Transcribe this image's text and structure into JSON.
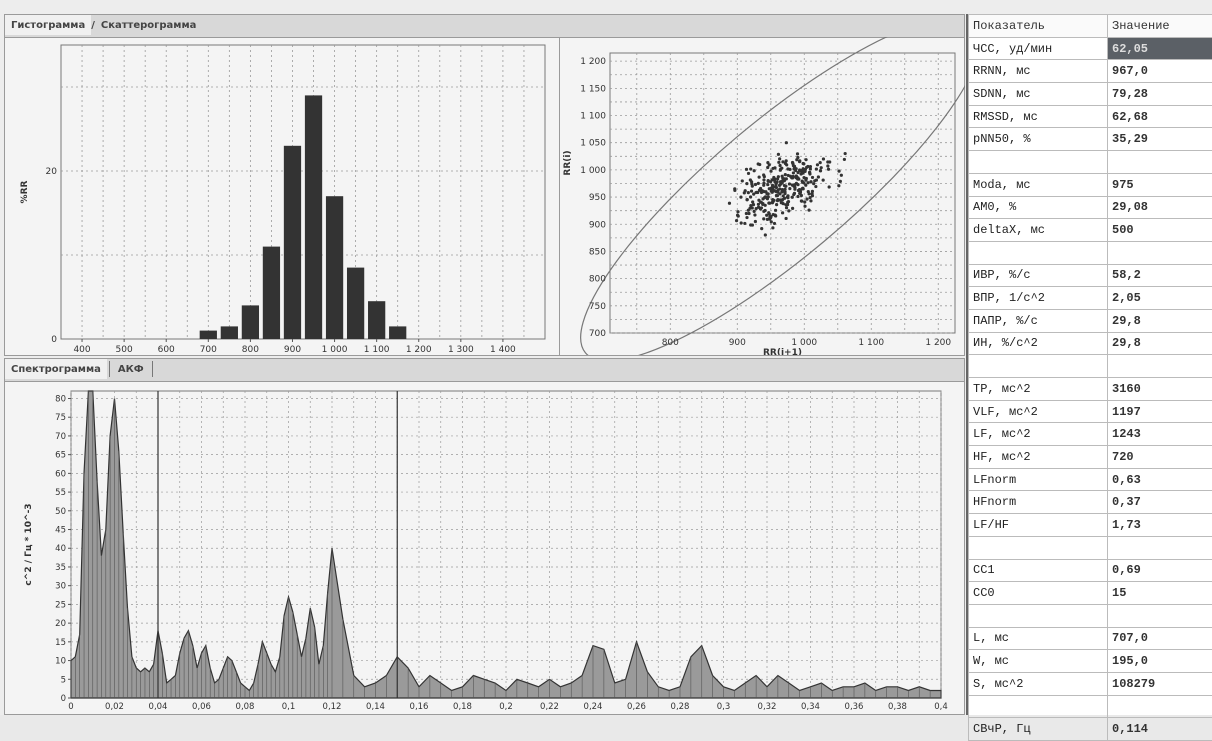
{
  "top_tabs": {
    "histogram": "Гистограмма",
    "separator": "/",
    "scatter": "Скаттерограмма"
  },
  "bottom_tabs": {
    "spectrogram": "Спектрограмма",
    "acf": "АКФ"
  },
  "histogram": {
    "ylabel": "%RR",
    "x_ticks": [
      "400",
      "500",
      "600",
      "700",
      "800",
      "900",
      "1 000",
      "1 100",
      "1 200",
      "1 300",
      "1 400"
    ],
    "y_ticks": [
      "0",
      "20"
    ]
  },
  "scatter": {
    "xlabel": "RR(i+1)",
    "ylabel": "RR(i)",
    "x_ticks": [
      "800",
      "900",
      "1 000",
      "1 100",
      "1 200"
    ],
    "y_ticks": [
      "700",
      "750",
      "800",
      "850",
      "900",
      "950",
      "1 000",
      "1 050",
      "1 100",
      "1 150",
      "1 200"
    ]
  },
  "spectrum": {
    "ylabel": "с^2 / Гц * 10^-3",
    "x_ticks": [
      "0",
      "0,02",
      "0,04",
      "0,06",
      "0,08",
      "0,1",
      "0,12",
      "0,14",
      "0,16",
      "0,18",
      "0,2",
      "0,22",
      "0,24",
      "0,26",
      "0,28",
      "0,3",
      "0,32",
      "0,34",
      "0,36",
      "0,38",
      "0,4"
    ],
    "y_ticks": [
      "0",
      "5",
      "10",
      "15",
      "20",
      "25",
      "30",
      "35",
      "40",
      "45",
      "50",
      "55",
      "60",
      "65",
      "70",
      "75",
      "80"
    ]
  },
  "table": {
    "headers": [
      "Показатель",
      "Значение"
    ],
    "rows": [
      [
        "ЧСС, уд/мин",
        "62,05"
      ],
      [
        "RRNN, мс",
        "967,0"
      ],
      [
        "SDNN, мс",
        "79,28"
      ],
      [
        "RMSSD, мс",
        "62,68"
      ],
      [
        "pNN50, %",
        "35,29"
      ],
      [
        "",
        ""
      ],
      [
        "Moda, мс",
        "975"
      ],
      [
        "AM0, %",
        "29,08"
      ],
      [
        "deltaX, мс",
        "500"
      ],
      [
        "",
        ""
      ],
      [
        "ИВР, %/с",
        "58,2"
      ],
      [
        "ВПР, 1/с^2",
        "2,05"
      ],
      [
        "ПАПР, %/с",
        "29,8"
      ],
      [
        "ИН, %/с^2",
        "29,8"
      ],
      [
        "",
        ""
      ],
      [
        "TP, мс^2",
        "3160"
      ],
      [
        "VLF, мс^2",
        "1197"
      ],
      [
        "LF, мс^2",
        "1243"
      ],
      [
        "HF, мс^2",
        "720"
      ],
      [
        "LFnorm",
        "0,63"
      ],
      [
        "HFnorm",
        "0,37"
      ],
      [
        "LF/HF",
        "1,73"
      ],
      [
        "",
        ""
      ],
      [
        "CC1",
        "0,69"
      ],
      [
        "CC0",
        "15"
      ],
      [
        "",
        ""
      ],
      [
        "L, мс",
        "707,0"
      ],
      [
        "W, мс",
        "195,0"
      ],
      [
        "S, мс^2",
        "108279"
      ],
      [
        "",
        ""
      ],
      [
        "СВчР, Гц",
        "0,114"
      ]
    ]
  },
  "colors": {
    "bar": "#333333",
    "grid": "#9a9a9a",
    "selected": "#5b6066"
  },
  "chart_data": [
    {
      "type": "bar",
      "x": [
        700,
        750,
        800,
        850,
        900,
        950,
        1000,
        1050,
        1100,
        1150,
        1200
      ],
      "values": [
        1,
        1.5,
        4,
        11,
        23,
        29,
        17,
        8.5,
        4.5,
        1.5,
        0
      ],
      "ylim": [
        0,
        35
      ],
      "xlim": [
        350,
        1500
      ],
      "ylabel": "%RR"
    },
    {
      "type": "scatter",
      "xlabel": "RR(i+1)",
      "ylabel": "RR(i)",
      "xlim": [
        710,
        1225
      ],
      "ylim": [
        700,
        1215
      ]
    },
    {
      "type": "area",
      "ylabel": "с^2 / Гц * 10^-3",
      "xlim": [
        0,
        0.4
      ],
      "ylim": [
        0,
        82
      ],
      "x": [
        0,
        0.002,
        0.004,
        0.006,
        0.008,
        0.01,
        0.012,
        0.014,
        0.016,
        0.018,
        0.02,
        0.022,
        0.024,
        0.026,
        0.028,
        0.03,
        0.032,
        0.034,
        0.036,
        0.038,
        0.04,
        0.042,
        0.044,
        0.046,
        0.048,
        0.05,
        0.052,
        0.054,
        0.056,
        0.058,
        0.06,
        0.062,
        0.064,
        0.066,
        0.068,
        0.07,
        0.072,
        0.074,
        0.076,
        0.078,
        0.08,
        0.082,
        0.084,
        0.086,
        0.088,
        0.09,
        0.092,
        0.094,
        0.096,
        0.098,
        0.1,
        0.102,
        0.104,
        0.106,
        0.108,
        0.11,
        0.112,
        0.114,
        0.116,
        0.118,
        0.12,
        0.125,
        0.13,
        0.135,
        0.14,
        0.145,
        0.15,
        0.155,
        0.16,
        0.165,
        0.17,
        0.175,
        0.18,
        0.185,
        0.19,
        0.195,
        0.2,
        0.205,
        0.21,
        0.215,
        0.22,
        0.225,
        0.23,
        0.235,
        0.24,
        0.245,
        0.25,
        0.255,
        0.26,
        0.265,
        0.27,
        0.275,
        0.28,
        0.285,
        0.29,
        0.295,
        0.3,
        0.305,
        0.31,
        0.315,
        0.32,
        0.325,
        0.33,
        0.335,
        0.34,
        0.345,
        0.35,
        0.355,
        0.36,
        0.365,
        0.37,
        0.375,
        0.38,
        0.385,
        0.39,
        0.395,
        0.4
      ],
      "values": [
        10,
        11,
        17,
        60,
        84,
        82,
        58,
        38,
        45,
        70,
        80,
        66,
        44,
        24,
        11,
        8,
        7,
        8,
        7,
        9,
        18,
        12,
        4,
        5,
        6,
        12,
        16,
        18,
        14,
        8,
        12,
        14,
        8,
        4,
        5,
        8,
        11,
        10,
        7,
        4,
        3,
        2,
        4,
        9,
        15,
        12,
        9,
        7,
        11,
        22,
        27,
        23,
        17,
        11,
        16,
        24,
        19,
        9,
        14,
        28,
        40,
        21,
        6,
        3,
        4,
        6,
        11,
        8,
        3,
        6,
        4,
        2,
        3,
        6,
        5,
        4,
        2,
        5,
        4,
        3,
        5,
        3,
        4,
        6,
        14,
        13,
        4,
        5,
        15,
        7,
        3,
        2,
        3,
        11,
        14,
        6,
        3,
        2,
        4,
        6,
        3,
        6,
        4,
        2,
        3,
        4,
        2,
        3,
        3,
        4,
        2,
        3,
        3,
        2,
        3,
        2,
        2
      ]
    }
  ]
}
